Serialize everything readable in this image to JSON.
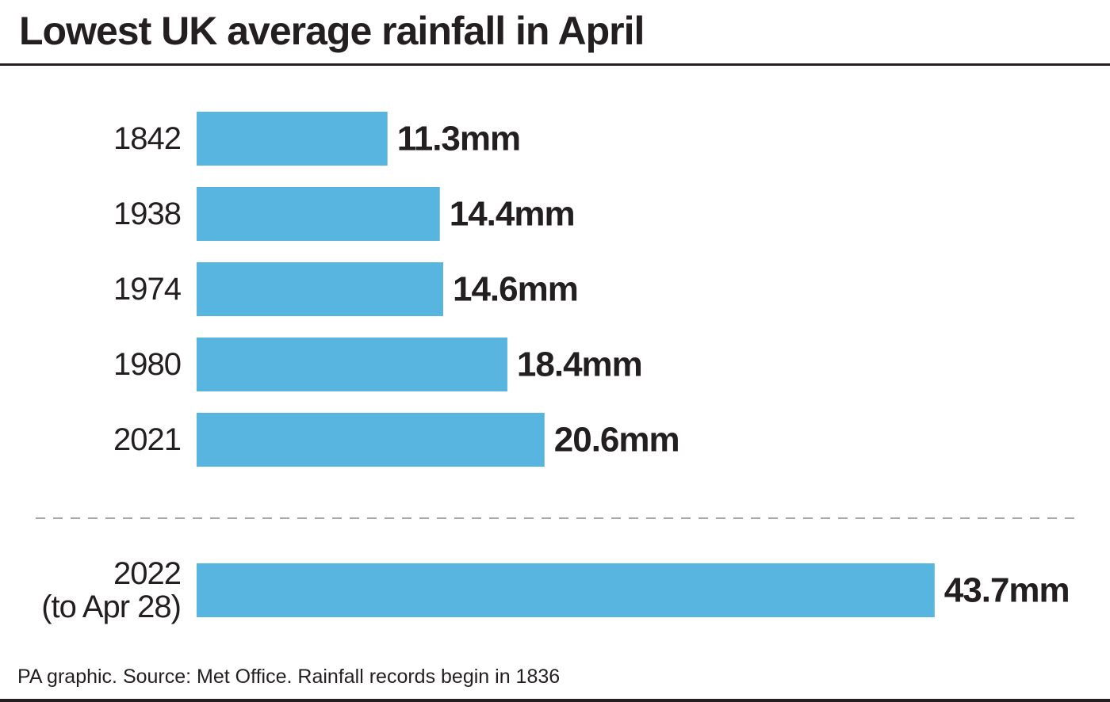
{
  "title": "Lowest UK average rainfall in April",
  "footer": "PA graphic. Source: Met Office. Rainfall records begin in 1836",
  "colors": {
    "bar": "#57b5df",
    "text": "#231f20",
    "divider": "#a7a9ac"
  },
  "chart_data": {
    "type": "bar",
    "orientation": "horizontal",
    "title": "Lowest UK average rainfall in April",
    "unit": "mm",
    "categories": [
      "1842",
      "1938",
      "1974",
      "1980",
      "2021",
      "2022 (to Apr 28)"
    ],
    "category_lines": [
      [
        "1842"
      ],
      [
        "1938"
      ],
      [
        "1974"
      ],
      [
        "1980"
      ],
      [
        "2021"
      ],
      [
        "2022",
        "(to Apr 28)"
      ]
    ],
    "values": [
      11.3,
      14.4,
      14.6,
      18.4,
      20.6,
      43.7
    ],
    "value_labels": [
      "11.3mm",
      "14.4mm",
      "14.6mm",
      "18.4mm",
      "20.6mm",
      "43.7mm"
    ],
    "separator_before_index": 5,
    "grid": false,
    "legend": "none"
  }
}
